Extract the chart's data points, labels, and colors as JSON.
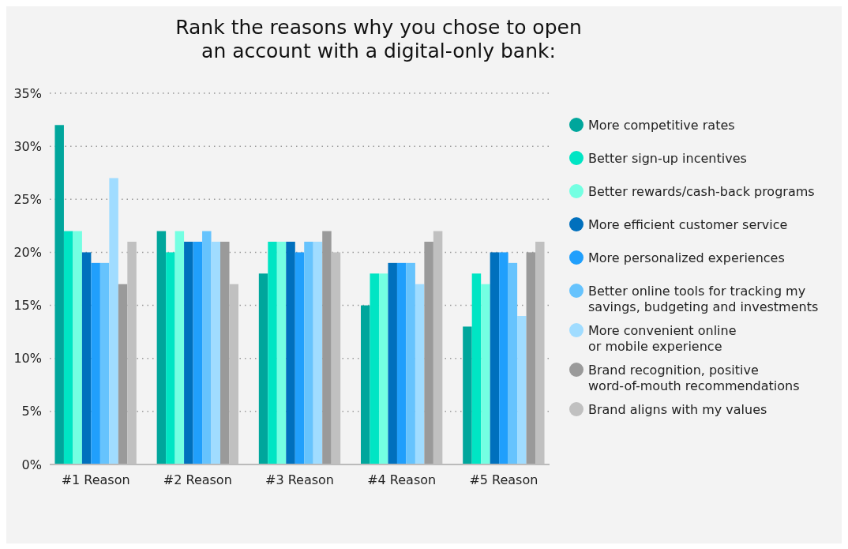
{
  "chart_data": {
    "type": "bar",
    "title": "Rank the reasons why you chose to open\nan account with a digital-only bank:",
    "categories": [
      "#1 Reason",
      "#2 Reason",
      "#3 Reason",
      "#4 Reason",
      "#5 Reason"
    ],
    "series": [
      {
        "name": "More competitive rates",
        "color": "#00a69c",
        "values": [
          32,
          22,
          18,
          15,
          13
        ]
      },
      {
        "name": "Better sign-up incentives",
        "color": "#00e5c4",
        "values": [
          22,
          20,
          21,
          18,
          18
        ]
      },
      {
        "name": "Better rewards/cash-back programs",
        "color": "#74ffe2",
        "values": [
          22,
          22,
          21,
          18,
          17
        ]
      },
      {
        "name": "More efficient customer service",
        "color": "#0070bd",
        "values": [
          20,
          21,
          21,
          19,
          20
        ]
      },
      {
        "name": "More personalized experiences",
        "color": "#209ffc",
        "values": [
          19,
          21,
          20,
          19,
          20
        ]
      },
      {
        "name": "Better online tools for tracking my\nsavings, budgeting and investments",
        "color": "#66c3fd",
        "values": [
          19,
          22,
          21,
          19,
          19
        ]
      },
      {
        "name": "More convenient online\nor mobile experience",
        "color": "#a0dcff",
        "values": [
          27,
          21,
          21,
          17,
          14
        ]
      },
      {
        "name": "Brand recognition, positive\nword-of-mouth recommendations",
        "color": "#9a9a9a",
        "values": [
          17,
          21,
          22,
          21,
          20
        ]
      },
      {
        "name": "Brand aligns with my values",
        "color": "#c0c0c0",
        "values": [
          21,
          17,
          20,
          22,
          21
        ]
      }
    ],
    "ylim": [
      0,
      35
    ],
    "yticks": [
      {
        "value": 0,
        "label": "0%"
      },
      {
        "value": 5,
        "label": "5%"
      },
      {
        "value": 10,
        "label": "10%"
      },
      {
        "value": 15,
        "label": "15%"
      },
      {
        "value": 20,
        "label": "20%"
      },
      {
        "value": 25,
        "label": "25%"
      },
      {
        "value": 30,
        "label": "30%"
      },
      {
        "value": 35,
        "label": "35%"
      }
    ],
    "grid": "y",
    "legend": "right"
  }
}
